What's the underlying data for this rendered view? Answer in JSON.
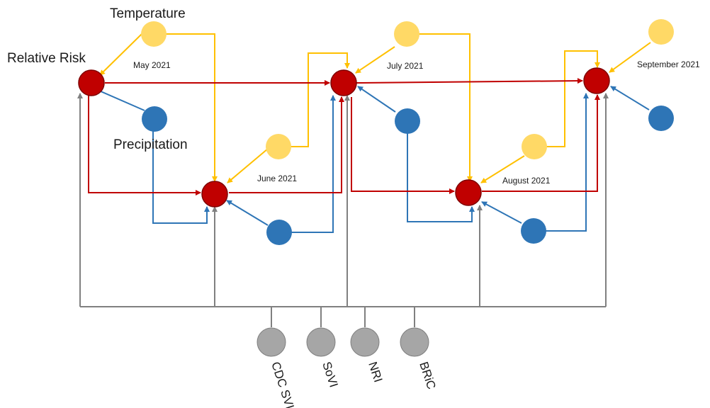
{
  "labels": {
    "temperature": "Temperature",
    "relative_risk": "Relative Risk",
    "precipitation": "Precipitation"
  },
  "months": [
    "May 2021",
    "June 2021",
    "July 2021",
    "August 2021",
    "September 2021"
  ],
  "indices": [
    "CDC SVI",
    "SoVI",
    "NRI",
    "BRiC"
  ],
  "colors": {
    "risk": "#c00000",
    "risk_border": "#7f0000",
    "temperature": "#ffd966",
    "precipitation": "#2e75b6",
    "index": "#a6a6a6",
    "index_border": "#7f7f7f",
    "edge_risk": "#c00000",
    "edge_temp": "#ffc000",
    "edge_precip": "#2e75b6",
    "edge_index": "#808080"
  }
}
